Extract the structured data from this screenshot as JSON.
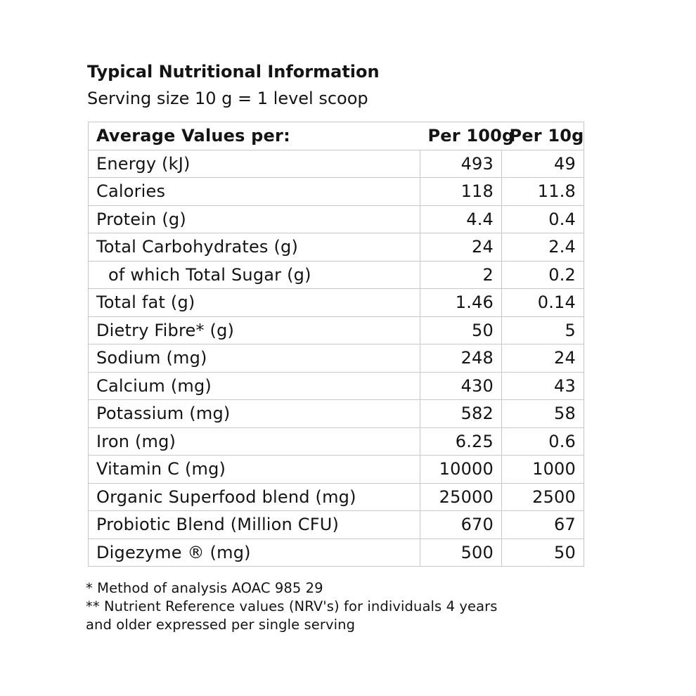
{
  "title": "Typical Nutritional Information",
  "subtitle": "Serving size 10 g = 1 level scoop",
  "table": {
    "headers": {
      "name": "Average Values per:",
      "per100": "Per 100g",
      "per10": "Per 10g"
    },
    "rows": [
      {
        "name": "Energy (kJ)",
        "per100": "493",
        "per10": "49",
        "indent": false
      },
      {
        "name": "Calories",
        "per100": "118",
        "per10": "11.8",
        "indent": false
      },
      {
        "name": "Protein (g)",
        "per100": "4.4",
        "per10": "0.4",
        "indent": false
      },
      {
        "name": "Total Carbohydrates (g)",
        "per100": "24",
        "per10": "2.4",
        "indent": false
      },
      {
        "name": "of which Total Sugar (g)",
        "per100": "2",
        "per10": "0.2",
        "indent": true
      },
      {
        "name": "Total fat (g)",
        "per100": "1.46",
        "per10": "0.14",
        "indent": false
      },
      {
        "name": "Dietry Fibre* (g)",
        "per100": "50",
        "per10": "5",
        "indent": false
      },
      {
        "name": "Sodium (mg)",
        "per100": "248",
        "per10": "24",
        "indent": false
      },
      {
        "name": "Calcium (mg)",
        "per100": "430",
        "per10": "43",
        "indent": false
      },
      {
        "name": "Potassium (mg)",
        "per100": "582",
        "per10": "58",
        "indent": false
      },
      {
        "name": "Iron (mg)",
        "per100": "6.25",
        "per10": "0.6",
        "indent": false
      },
      {
        "name": "Vitamin C (mg)",
        "per100": "10000",
        "per10": "1000",
        "indent": false
      },
      {
        "name": "Organic Superfood blend (mg)",
        "per100": "25000",
        "per10": "2500",
        "indent": false
      },
      {
        "name": "Probiotic Blend (Million CFU)",
        "per100": "670",
        "per10": "67",
        "indent": false
      },
      {
        "name": "Digezyme ® (mg)",
        "per100": "500",
        "per10": "50",
        "indent": false
      }
    ]
  },
  "footnotes": {
    "line1": "* Method of analysis AOAC 985 29",
    "line2": "** Nutrient Reference values (NRV's) for individuals 4 years",
    "line3": "and older expressed per single serving"
  }
}
